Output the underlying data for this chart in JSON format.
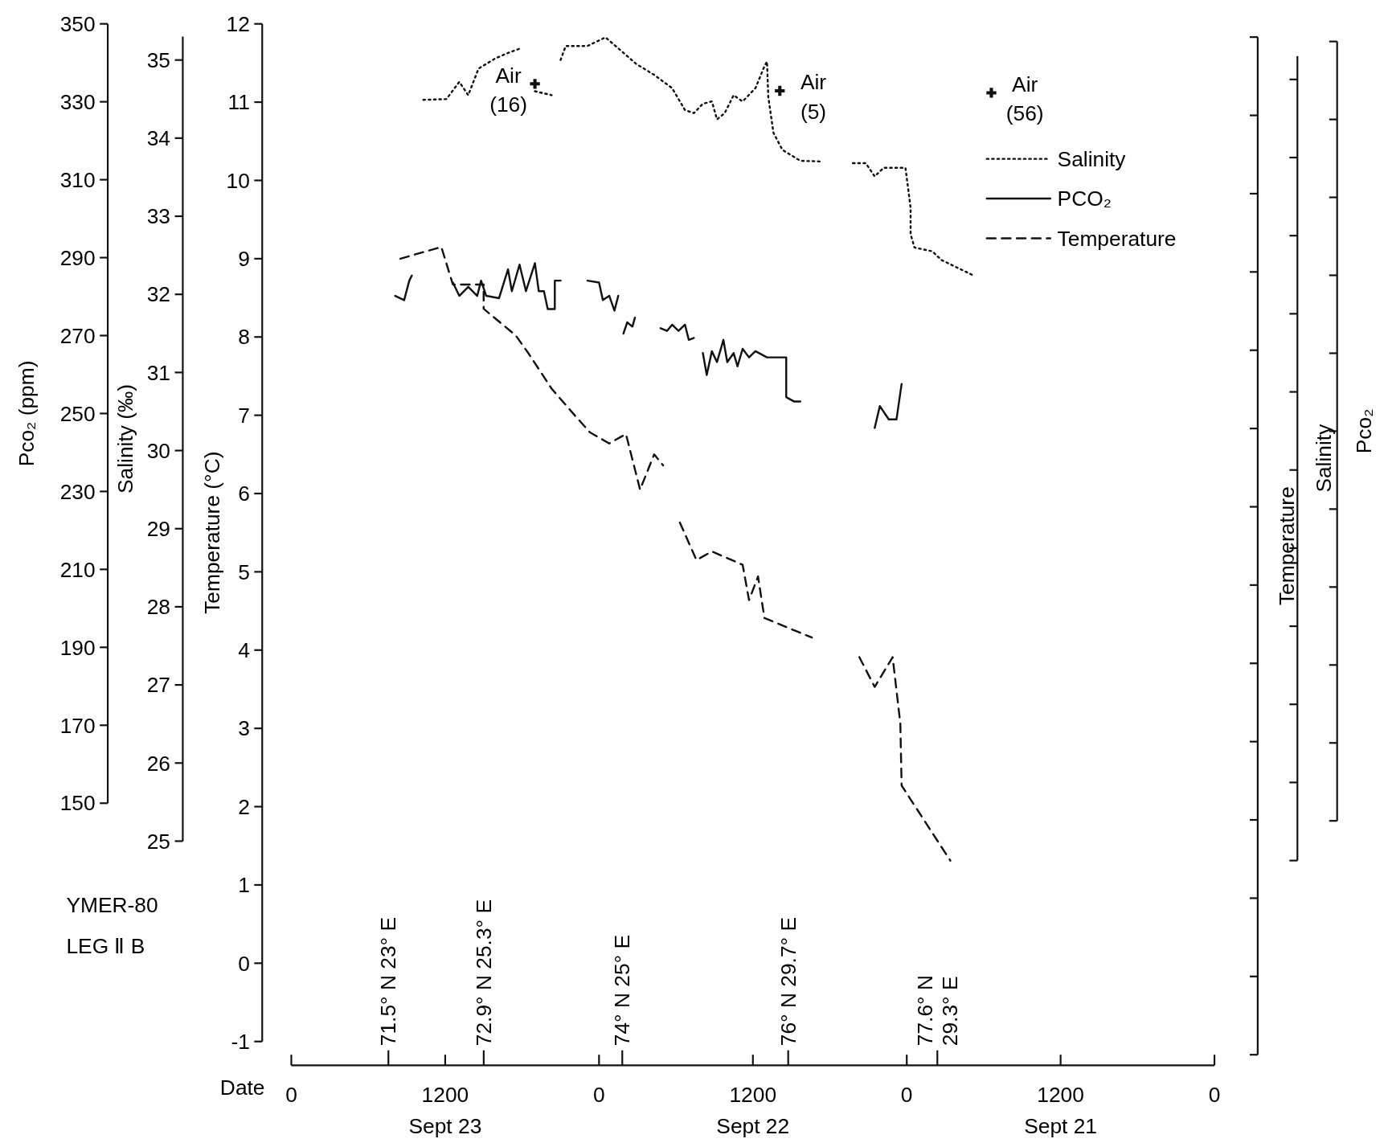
{
  "chart_data": {
    "type": "line",
    "xlabel": "Date",
    "ylabel": "Temperature (°C)",
    "y2label": "Pco₂ (ppm)",
    "y3label": "Salinity (‰)",
    "xlim": [
      "--09-24T00:00",
      "--09-21T00:00"
    ],
    "xticks": [
      {
        "value": "--09-24T00:00",
        "label": "0"
      },
      {
        "value": "--09-23T12:00",
        "label": "1200\nSept 23"
      },
      {
        "value": "--09-23T00:00",
        "label": "0"
      },
      {
        "value": "--09-22T12:00",
        "label": "1200\nSept 22"
      },
      {
        "value": "--09-22T00:00",
        "label": "0"
      },
      {
        "value": "--09-21T12:00",
        "label": "1200\nSept 21"
      },
      {
        "value": "--09-21T00:00",
        "label": "0"
      }
    ],
    "ylim": [
      -1,
      12
    ],
    "yticks": [
      -1,
      0,
      1,
      2,
      3,
      4,
      5,
      6,
      7,
      8,
      9,
      10,
      11,
      12
    ],
    "y2lim": [
      150,
      350
    ],
    "y2ticks": [
      150,
      170,
      190,
      210,
      230,
      250,
      270,
      290,
      310,
      330,
      350
    ],
    "y3lim": [
      25,
      35.3
    ],
    "y3ticks": [
      25,
      26,
      27,
      28,
      29,
      30,
      31,
      32,
      33,
      34,
      35
    ],
    "legend": "top right",
    "series": [
      {
        "name": "Salinity",
        "color": "#111111",
        "axis": "y3",
        "line_style": "dotted",
        "x": [
          "--09-23T13:42",
          "--09-23T11:54",
          "--09-23T10:54",
          "--09-23T10:12",
          "--09-23T09:24",
          "--09-23T08:06",
          "--09-23T07:06",
          "--09-23T06:06",
          null,
          "--09-23T05:00",
          "--09-23T03:42",
          null,
          "--09-23T03:00",
          "--09-23T02:36",
          "--09-23T00:54",
          "--09-22T23:30",
          "--09-22T22:30",
          "--09-22T21:06",
          "--09-22T19:42",
          "--09-22T18:18",
          "--09-22T17:18",
          "--09-22T16:36",
          "--09-22T15:54",
          "--09-22T15:12",
          "--09-22T14:48",
          "--09-22T14:12",
          "--09-22T13:30",
          "--09-22T12:48",
          "--09-22T11:48",
          "--09-22T11:06",
          "--09-22T10:54",
          "--09-22T10:48",
          "--09-22T10:24",
          "--09-22T09:42",
          "--09-22T08:18",
          "--09-22T06:36",
          null,
          "--09-22T04:12",
          "--09-22T03:12",
          "--09-22T02:30",
          "--09-22T01:48",
          "--09-22T00:06",
          "--09-21T23:42",
          "--09-21T23:42",
          "--09-21T23:24",
          "--09-21T22:00",
          "--09-21T21:18",
          "--09-21T18:54"
        ],
        "values": [
          34.49,
          34.5,
          34.72,
          34.55,
          34.89,
          35.02,
          35.09,
          35.15,
          null,
          34.6,
          34.55,
          null,
          35.0,
          35.18,
          35.18,
          35.29,
          35.15,
          34.95,
          34.81,
          34.64,
          34.36,
          34.32,
          34.44,
          34.47,
          34.24,
          34.32,
          34.55,
          34.47,
          34.64,
          34.92,
          34.98,
          34.53,
          34.07,
          33.85,
          33.71,
          33.7,
          null,
          33.68,
          33.68,
          33.51,
          33.62,
          33.62,
          33.11,
          32.77,
          32.6,
          32.55,
          32.44,
          32.25
        ]
      },
      {
        "name": "PCO₂",
        "color": "#111111",
        "axis": "y2",
        "line_style": "solid",
        "x": [
          "--09-23T15:54",
          "--09-23T15:12",
          "--09-23T14:48",
          "--09-23T14:36",
          null,
          "--09-23T11:24",
          "--09-23T10:54",
          "--09-23T10:12",
          "--09-23T09:30",
          "--09-23T09:12",
          "--09-23T08:48",
          "--09-23T07:48",
          "--09-23T07:06",
          "--09-23T06:48",
          "--09-23T06:12",
          "--09-23T05:42",
          "--09-23T05:00",
          "--09-23T04:42",
          "--09-23T04:18",
          "--09-23T04:00",
          "--09-23T03:27",
          "--09-23T03:27",
          "--09-23T03:00",
          null,
          "--09-23T00:54",
          "--09-23T00:00",
          "--09-22T23:42",
          "--09-22T23:12",
          "--09-22T22:48",
          "--09-22T22:30",
          null,
          "--09-22T22:06",
          "--09-22T21:48",
          "--09-22T21:24",
          "--09-22T21:12",
          null,
          "--09-22T19:12",
          "--09-22T18:42",
          "--09-22T18:18",
          "--09-22T17:48",
          "--09-22T17:18",
          "--09-22T17:00",
          "--09-22T16:36",
          null,
          "--09-22T15:54",
          "--09-22T15:36",
          "--09-22T15:12",
          "--09-22T14:48",
          "--09-22T14:18",
          "--09-22T14:00",
          "--09-22T13:30",
          "--09-22T13:12",
          "--09-22T12:48",
          "--09-22T12:18",
          "--09-22T11:48",
          "--09-22T10:54",
          "--09-22T09:24",
          "--09-22T09:24",
          "--09-22T08:48",
          "--09-22T08:18",
          null,
          "--09-22T02:30",
          "--09-22T02:06",
          "--09-22T01:24",
          "--09-22T00:48",
          "--09-22T00:24"
        ],
        "values": [
          280.2,
          279.1,
          284.1,
          285.4,
          null,
          283.6,
          280.2,
          282.5,
          280.2,
          284.1,
          280.2,
          279.6,
          287.0,
          281.4,
          288.2,
          281.4,
          288.6,
          281.4,
          281.4,
          276.8,
          276.8,
          284.1,
          284.1,
          null,
          284.1,
          283.6,
          279.1,
          280.2,
          276.4,
          280.2,
          null,
          270.5,
          273.4,
          272.3,
          274.6,
          null,
          271.9,
          271.2,
          272.8,
          271.2,
          272.8,
          268.9,
          269.4,
          null,
          265.5,
          259.9,
          266.0,
          263.2,
          268.9,
          263.2,
          265.5,
          262.1,
          266.6,
          264.4,
          266.0,
          264.4,
          264.4,
          254.2,
          253.1,
          253.1,
          null,
          246.3,
          251.9,
          248.5,
          248.5,
          257.6
        ]
      },
      {
        "name": "Temperature",
        "color": "#111111",
        "axis": "y",
        "line_style": "dashed",
        "x": [
          "--09-23T15:30",
          "--09-23T12:18",
          "--09-23T11:24",
          "--09-23T09:00",
          "--09-23T09:00",
          "--09-23T06:30",
          "--09-23T05:30",
          "--09-23T03:42",
          "--09-23T01:54",
          "--09-23T00:42",
          "--09-22T23:12",
          "--09-22T21:54",
          "--09-22T20:48",
          "--09-22T19:42",
          "--09-22T19:00",
          null,
          "--09-22T17:42",
          "--09-22T16:24",
          "--09-22T15:12",
          "--09-22T12:48",
          "--09-22T12:18",
          "--09-22T11:36",
          "--09-22T11:06",
          "--09-22T07:24",
          null,
          "--09-22T03:42",
          "--09-22T02:30",
          "--09-22T01:06",
          "--09-22T00:30",
          "--09-22T00:24",
          "--09-21T20:36"
        ],
        "values": [
          9.0,
          9.15,
          8.67,
          8.67,
          8.36,
          8.02,
          7.79,
          7.34,
          7.0,
          6.78,
          6.64,
          6.76,
          6.05,
          6.5,
          6.36,
          null,
          5.63,
          5.15,
          5.26,
          5.09,
          4.64,
          4.94,
          4.41,
          4.16,
          null,
          3.91,
          3.53,
          3.91,
          3.06,
          2.27,
          1.31
        ]
      },
      {
        "type": "scatter",
        "color": "#111111",
        "axis": "y2",
        "marker": "cross",
        "x": [
          "--09-23T05:00",
          "--09-22T09:54",
          "--09-21T17:24"
        ],
        "values": [
          334.6,
          332.8,
          332.3
        ]
      }
    ],
    "annotations": [
      "YMER-80\nLEG Ⅱ B",
      "Temperature",
      "Salinity",
      "Pco₂",
      "71.5° N  23° E",
      "72.9° N  25.3° E",
      "74° N  25° E",
      "76° N  29.7° E",
      "77.6° N\n29.3° E",
      "Air\n(16)",
      "Air\n(5)",
      "Air\n(56)"
    ]
  }
}
